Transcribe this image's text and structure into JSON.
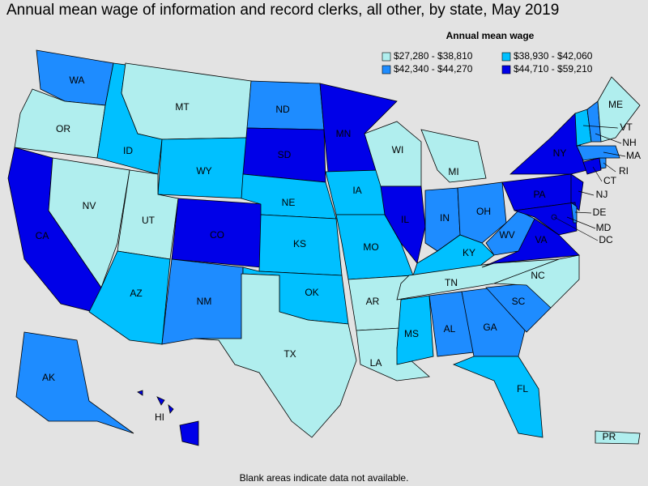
{
  "title": "Annual mean wage of information and record clerks, all other, by state, May 2019",
  "legend": {
    "title": "Annual mean wage",
    "items": [
      {
        "label": "$27,280 - $38,810",
        "color": "#b0eeee"
      },
      {
        "label": "$38,930 - $42,060",
        "color": "#00c0ff"
      },
      {
        "label": "$42,340 - $44,270",
        "color": "#1e8cff"
      },
      {
        "label": "$44,710 - $59,210",
        "color": "#0000e8"
      }
    ]
  },
  "states": [
    {
      "label": "WA",
      "bin": 2
    },
    {
      "label": "OR",
      "bin": 0
    },
    {
      "label": "CA",
      "bin": 3
    },
    {
      "label": "NV",
      "bin": 0
    },
    {
      "label": "ID",
      "bin": 1
    },
    {
      "label": "MT",
      "bin": 0
    },
    {
      "label": "WY",
      "bin": 1
    },
    {
      "label": "UT",
      "bin": 0
    },
    {
      "label": "AZ",
      "bin": 1
    },
    {
      "label": "CO",
      "bin": 3
    },
    {
      "label": "NM",
      "bin": 2
    },
    {
      "label": "ND",
      "bin": 2
    },
    {
      "label": "SD",
      "bin": 3
    },
    {
      "label": "NE",
      "bin": 1
    },
    {
      "label": "KS",
      "bin": 1
    },
    {
      "label": "OK",
      "bin": 1
    },
    {
      "label": "TX",
      "bin": 0
    },
    {
      "label": "MN",
      "bin": 3
    },
    {
      "label": "IA",
      "bin": 1
    },
    {
      "label": "MO",
      "bin": 1
    },
    {
      "label": "AR",
      "bin": 0
    },
    {
      "label": "LA",
      "bin": 0
    },
    {
      "label": "WI",
      "bin": 0
    },
    {
      "label": "IL",
      "bin": 3
    },
    {
      "label": "MI",
      "bin": 0
    },
    {
      "label": "IN",
      "bin": 2
    },
    {
      "label": "OH",
      "bin": 2
    },
    {
      "label": "KY",
      "bin": 1
    },
    {
      "label": "TN",
      "bin": 0
    },
    {
      "label": "MS",
      "bin": 1
    },
    {
      "label": "AL",
      "bin": 2
    },
    {
      "label": "GA",
      "bin": 2
    },
    {
      "label": "FL",
      "bin": 1
    },
    {
      "label": "SC",
      "bin": 2
    },
    {
      "label": "NC",
      "bin": 0
    },
    {
      "label": "VA",
      "bin": 3
    },
    {
      "label": "WV",
      "bin": 2
    },
    {
      "label": "PA",
      "bin": 3
    },
    {
      "label": "NY",
      "bin": 3
    },
    {
      "label": "NJ",
      "bin": 3
    },
    {
      "label": "MD",
      "bin": 3
    },
    {
      "label": "DE",
      "bin": 2
    },
    {
      "label": "CT",
      "bin": 3
    },
    {
      "label": "RI",
      "bin": 2
    },
    {
      "label": "MA",
      "bin": 2
    },
    {
      "label": "VT",
      "bin": 1
    },
    {
      "label": "NH",
      "bin": 2
    },
    {
      "label": "ME",
      "bin": 0
    },
    {
      "label": "AK",
      "bin": 2
    },
    {
      "label": "HI",
      "bin": 3
    },
    {
      "label": "PR",
      "bin": 0
    },
    {
      "label": "DC",
      "bin": 3
    }
  ],
  "footnote": "Blank areas indicate data not available."
}
